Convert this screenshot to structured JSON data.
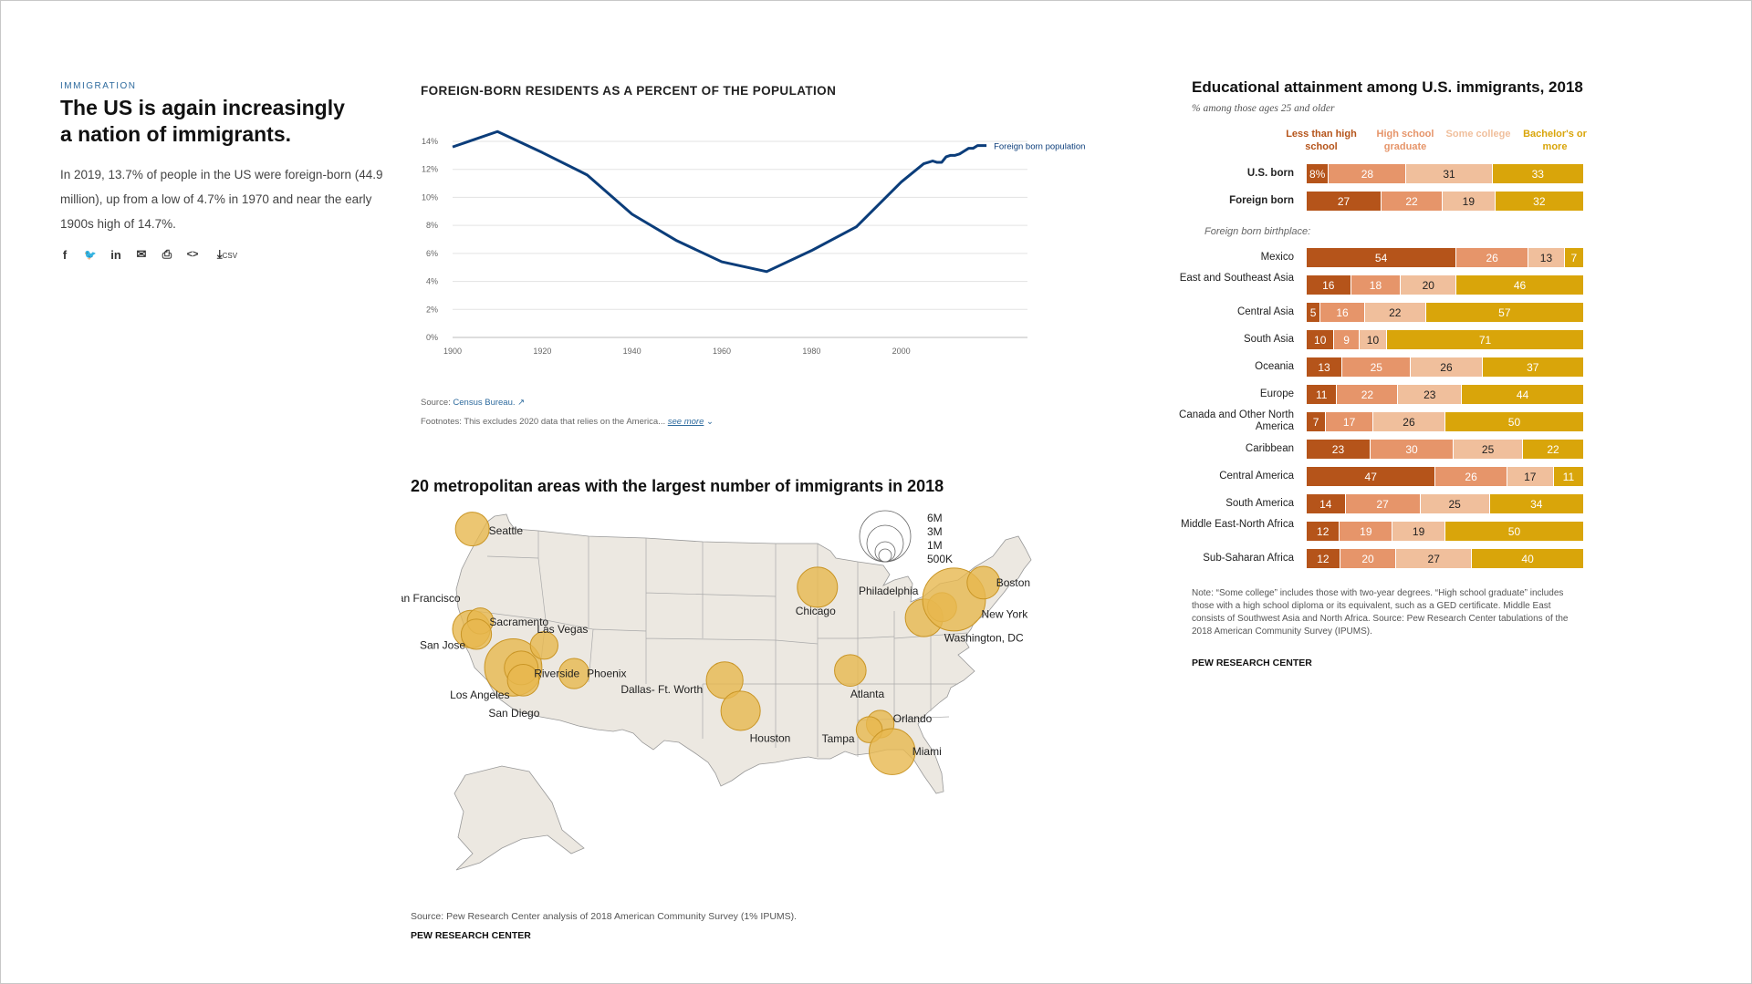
{
  "intro": {
    "kicker": "IMMIGRATION",
    "headline": "The US is again increasingly a nation of immigrants.",
    "dek": "In 2019, 13.7% of people in the US were foreign-born (44.9 million), up from a low of 4.7% in 1970 and near the early 1900s high of 14.7%.",
    "share_icons": [
      "facebook-icon",
      "twitter-icon",
      "linkedin-icon",
      "email-icon",
      "print-icon",
      "embed-icon",
      "download-csv-icon"
    ],
    "share_glyphs": [
      "f",
      "🐦",
      "in",
      "✉",
      "⎙",
      "<>",
      "⤓"
    ],
    "csv_label": "CSV"
  },
  "line_chart": {
    "title": "FOREIGN-BORN RESIDENTS AS A PERCENT OF THE POPULATION",
    "source_label": "Source:",
    "source_link": "Census Bureau.",
    "footnote_label": "Footnotes:",
    "footnote_text": "This excludes 2020 data that relies on the America...",
    "see_more": "see more"
  },
  "map_chart": {
    "title": "20 metropolitan areas with the largest number of immigrants in 2018",
    "source": "Source: Pew Research Center analysis of 2018 American Community Survey (1% IPUMS).",
    "credit": "PEW RESEARCH CENTER",
    "legend": [
      "6M",
      "3M",
      "1M",
      "500K"
    ]
  },
  "bar_chart": {
    "title": "Educational attainment among U.S. immigrants, 2018",
    "subtitle": "% among those ages 25 and older",
    "group_label": "Foreign born birthplace:",
    "note": "Note: “Some college” includes those with two-year degrees. “High school graduate” includes those with a high school diploma or its equivalent, such as a GED certificate. Middle East consists of Southwest Asia and North Africa. Source: Pew Research Center tabulations of the 2018 American Community Survey (IPUMS).",
    "credit": "PEW RESEARCH CENTER",
    "colors": [
      "#b5541a",
      "#e6956a",
      "#f0bf9c",
      "#d9a50a"
    ]
  },
  "chart_data": [
    {
      "type": "line",
      "title": "FOREIGN-BORN RESIDENTS AS A PERCENT OF THE POPULATION",
      "x_ticks": [
        "1900",
        "1920",
        "1940",
        "1960",
        "1980",
        "2000"
      ],
      "y_ticks": [
        "0%",
        "2%",
        "4%",
        "6%",
        "8%",
        "10%",
        "12%",
        "14%"
      ],
      "xlim": [
        1900,
        2020
      ],
      "ylim": [
        0,
        14
      ],
      "grid": true,
      "series": [
        {
          "name": "Foreign born population",
          "color": "#0b3d7a",
          "x": [
            1900,
            1910,
            1920,
            1930,
            1940,
            1950,
            1960,
            1970,
            1980,
            1990,
            2000,
            2005,
            2006,
            2007,
            2008,
            2009,
            2010,
            2011,
            2012,
            2013,
            2014,
            2015,
            2016,
            2017,
            2018,
            2019
          ],
          "y": [
            13.6,
            14.7,
            13.2,
            11.6,
            8.8,
            6.9,
            5.4,
            4.7,
            6.2,
            7.9,
            11.1,
            12.4,
            12.5,
            12.6,
            12.5,
            12.5,
            12.9,
            13.0,
            13.0,
            13.1,
            13.3,
            13.5,
            13.5,
            13.7,
            13.7,
            13.7
          ]
        }
      ]
    },
    {
      "type": "bar",
      "stacked": true,
      "title": "Educational attainment among U.S. immigrants, 2018",
      "series_names": [
        "Less than high school",
        "High school graduate",
        "Some college",
        "Bachelor's or more"
      ],
      "series_colors": [
        "#b5541a",
        "#e6956a",
        "#f0bf9c",
        "#d9a50a"
      ],
      "categories": [
        "U.S. born",
        "Foreign born",
        "Mexico",
        "East and Southeast Asia",
        "Central Asia",
        "South Asia",
        "Oceania",
        "Europe",
        "Canada and Other North America",
        "Caribbean",
        "Central America",
        "South America",
        "Middle East-North Africa",
        "Sub-Saharan Africa"
      ],
      "values": [
        [
          8,
          28,
          31,
          33
        ],
        [
          27,
          22,
          19,
          32
        ],
        [
          54,
          26,
          13,
          7
        ],
        [
          16,
          18,
          20,
          46
        ],
        [
          5,
          16,
          22,
          57
        ],
        [
          10,
          9,
          10,
          71
        ],
        [
          13,
          25,
          26,
          37
        ],
        [
          11,
          22,
          23,
          44
        ],
        [
          7,
          17,
          26,
          50
        ],
        [
          23,
          30,
          25,
          22
        ],
        [
          47,
          26,
          17,
          11
        ],
        [
          14,
          27,
          25,
          34
        ],
        [
          12,
          19,
          19,
          50
        ],
        [
          12,
          20,
          27,
          40
        ]
      ],
      "value_labels": [
        [
          "8%",
          "28",
          "31",
          "33"
        ],
        [
          "27",
          "22",
          "19",
          "32"
        ],
        [
          "54",
          "26",
          "13",
          "7"
        ],
        [
          "16",
          "18",
          "20",
          "46"
        ],
        [
          "5",
          "16",
          "22",
          "57"
        ],
        [
          "10",
          "9",
          "10",
          "71"
        ],
        [
          "13",
          "25",
          "26",
          "37"
        ],
        [
          "11",
          "22",
          "23",
          "44"
        ],
        [
          "7",
          "17",
          "26",
          "50"
        ],
        [
          "23",
          "30",
          "25",
          "22"
        ],
        [
          "47",
          "26",
          "17",
          "11"
        ],
        [
          "14",
          "27",
          "25",
          "34"
        ],
        [
          "12",
          "19",
          "19",
          "50"
        ],
        [
          "12",
          "20",
          "27",
          "40"
        ]
      ]
    },
    {
      "type": "scatter",
      "title": "20 metropolitan areas with the largest number of immigrants in 2018",
      "size_legend": [
        "6M",
        "3M",
        "1M",
        "500K"
      ],
      "points": [
        {
          "name": "Seattle",
          "lon": -122.3,
          "lat": 47.6,
          "size": 1.0
        },
        {
          "name": "San Francisco",
          "lon": -122.4,
          "lat": 37.8,
          "size": 1.4
        },
        {
          "name": "Sacramento",
          "lon": -121.5,
          "lat": 38.6,
          "size": 0.4
        },
        {
          "name": "San Jose",
          "lon": -121.9,
          "lat": 37.3,
          "size": 0.7
        },
        {
          "name": "Los Angeles",
          "lon": -118.2,
          "lat": 34.05,
          "size": 4.5
        },
        {
          "name": "Riverside",
          "lon": -117.4,
          "lat": 34.0,
          "size": 1.0
        },
        {
          "name": "San Diego",
          "lon": -117.2,
          "lat": 32.8,
          "size": 0.8
        },
        {
          "name": "Las Vegas",
          "lon": -115.1,
          "lat": 36.2,
          "size": 0.5
        },
        {
          "name": "Phoenix",
          "lon": -112.1,
          "lat": 33.45,
          "size": 0.7
        },
        {
          "name": "Dallas- Ft. Worth",
          "lon": -97.0,
          "lat": 32.8,
          "size": 1.3
        },
        {
          "name": "Houston",
          "lon": -95.4,
          "lat": 29.8,
          "size": 1.6
        },
        {
          "name": "Chicago",
          "lon": -87.7,
          "lat": 41.9,
          "size": 1.7
        },
        {
          "name": "Atlanta",
          "lon": -84.4,
          "lat": 33.75,
          "size": 0.8
        },
        {
          "name": "Orlando",
          "lon": -81.4,
          "lat": 28.5,
          "size": 0.5
        },
        {
          "name": "Tampa",
          "lon": -82.5,
          "lat": 27.95,
          "size": 0.4
        },
        {
          "name": "Miami",
          "lon": -80.2,
          "lat": 25.8,
          "size": 2.5
        },
        {
          "name": "Washington, DC",
          "lon": -77.0,
          "lat": 38.9,
          "size": 1.4
        },
        {
          "name": "Philadelphia",
          "lon": -75.2,
          "lat": 39.95,
          "size": 0.6
        },
        {
          "name": "New York",
          "lon": -74.0,
          "lat": 40.7,
          "size": 5.7
        },
        {
          "name": "Boston",
          "lon": -71.05,
          "lat": 42.35,
          "size": 0.9
        }
      ]
    }
  ]
}
